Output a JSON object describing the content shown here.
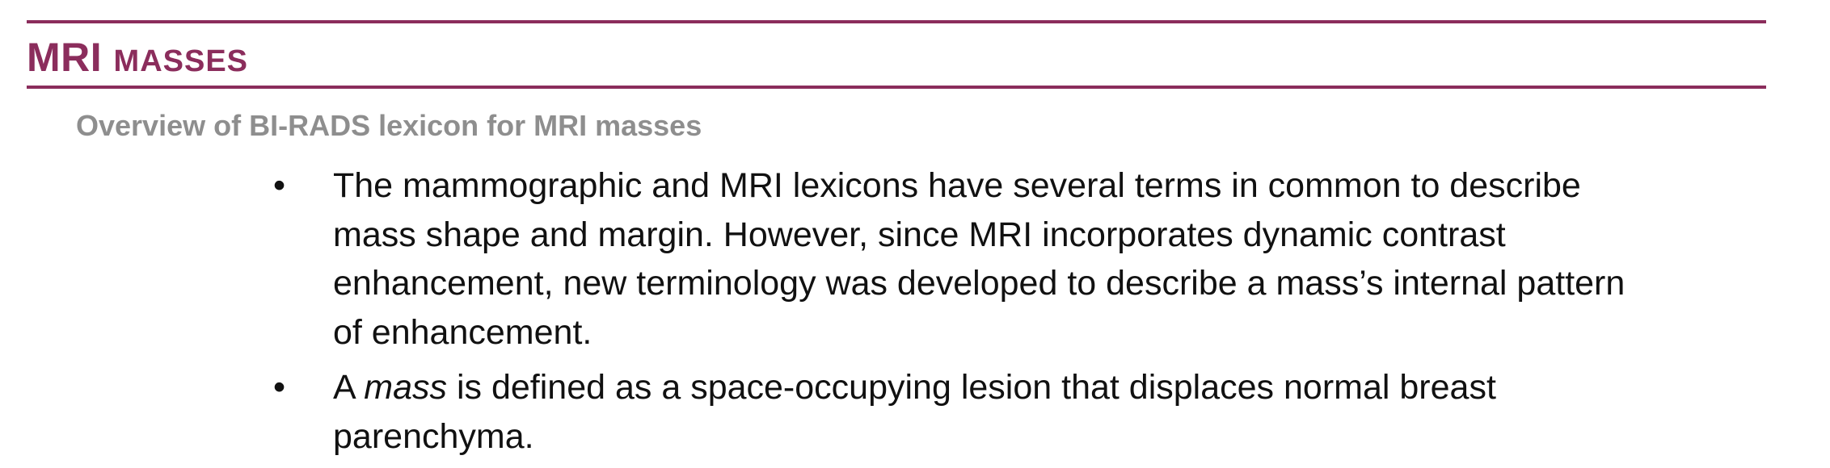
{
  "header": {
    "title_main": "MRI ",
    "title_small": "MASSES",
    "subtitle": "Overview of BI-RADS lexicon for MRI masses"
  },
  "bullets": [
    {
      "symbol": "•",
      "lines": [
        "The mammographic and MRI lexicons have several terms in common to describe",
        "mass shape and margin. However, since MRI incorporates dynamic contrast",
        "enhancement, new terminology was developed to describe a mass’s internal pattern",
        "of enhancement."
      ]
    },
    {
      "symbol": "•",
      "line1_prefix": "A ",
      "line1_emphasis": "mass",
      "line1_suffix": " is defined as a space-occupying lesion that displaces normal breast",
      "line2": "parenchyma."
    }
  ],
  "colors": {
    "accent": "#8b2d5c",
    "subtitle": "#8e8e8e",
    "body_text": "#111111"
  }
}
